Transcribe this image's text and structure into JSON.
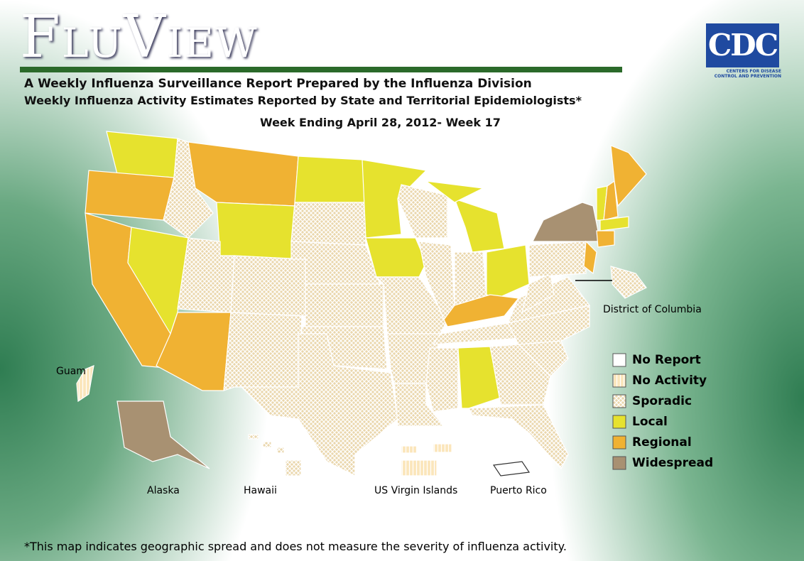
{
  "header": {
    "title": "FluView",
    "subtitle": "A Weekly Influenza Surveillance Report Prepared by the Influenza Division",
    "subtitle2": "Weekly Influenza Activity Estimates Reported by State and Territorial Epidemiologists*",
    "week": "Week Ending April 28, 2012- Week 17"
  },
  "logo": {
    "text": "CDC",
    "tagline": "Centers for Disease Control and Prevention"
  },
  "map_labels": {
    "dc": "District of Columbia",
    "guam": "Guam",
    "alaska": "Alaska",
    "hawaii": "Hawaii",
    "usvi": "US Virgin Islands",
    "pr": "Puerto Rico"
  },
  "legend": {
    "items": [
      {
        "label": "No Report",
        "fill": "#ffffff"
      },
      {
        "label": "No Activity",
        "fill": "url(#pNone)"
      },
      {
        "label": "Sporadic",
        "fill": "url(#pSpor)"
      },
      {
        "label": "Local",
        "fill": "#e6e22e"
      },
      {
        "label": "Regional",
        "fill": "#f0b233"
      },
      {
        "label": "Widespread",
        "fill": "#a89172"
      }
    ]
  },
  "footnote": "*This map indicates geographic spread and does not measure the severity of influenza activity."
}
